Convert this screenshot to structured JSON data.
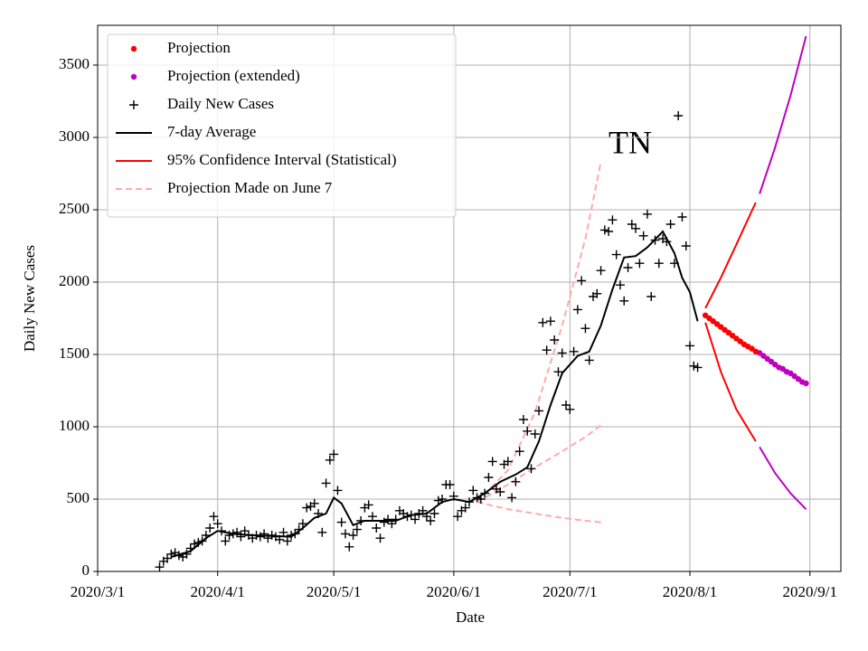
{
  "chart_data": {
    "type": "line",
    "annotation": "TN",
    "xlabel": "Date",
    "ylabel": "Daily New Cases",
    "xlim": [
      "2020-03-01",
      "2020-09-09"
    ],
    "ylim": [
      0,
      3775
    ],
    "xticks": [
      {
        "value": "2020-03-01",
        "label": "2020/3/1"
      },
      {
        "value": "2020-04-01",
        "label": "2020/4/1"
      },
      {
        "value": "2020-05-01",
        "label": "2020/5/1"
      },
      {
        "value": "2020-06-01",
        "label": "2020/6/1"
      },
      {
        "value": "2020-07-01",
        "label": "2020/7/1"
      },
      {
        "value": "2020-08-01",
        "label": "2020/8/1"
      },
      {
        "value": "2020-09-01",
        "label": "2020/9/1"
      }
    ],
    "yticks": [
      0,
      500,
      1000,
      1500,
      2000,
      2500,
      3000,
      3500
    ],
    "grid": true,
    "legend": "upper left",
    "series": [
      {
        "name": "Projection",
        "style": "dot",
        "color": "#ff0000",
        "x": [
          "2020-08-05",
          "2020-08-06",
          "2020-08-07",
          "2020-08-08",
          "2020-08-09",
          "2020-08-10",
          "2020-08-11",
          "2020-08-12",
          "2020-08-13",
          "2020-08-14",
          "2020-08-15",
          "2020-08-16",
          "2020-08-17",
          "2020-08-18"
        ],
        "values": [
          1770,
          1750,
          1730,
          1710,
          1690,
          1670,
          1650,
          1630,
          1610,
          1590,
          1570,
          1555,
          1540,
          1520
        ]
      },
      {
        "name": "Projection (extended)",
        "style": "dot",
        "color": "#bf00bf",
        "x": [
          "2020-08-19",
          "2020-08-20",
          "2020-08-21",
          "2020-08-22",
          "2020-08-23",
          "2020-08-24",
          "2020-08-25",
          "2020-08-26",
          "2020-08-27",
          "2020-08-28",
          "2020-08-29",
          "2020-08-30",
          "2020-08-31"
        ],
        "values": [
          1510,
          1490,
          1470,
          1450,
          1430,
          1410,
          1400,
          1380,
          1370,
          1350,
          1330,
          1310,
          1300
        ]
      },
      {
        "name": "Daily New Cases",
        "style": "plus",
        "color": "#000000",
        "x": [
          "2020-03-17",
          "2020-03-18",
          "2020-03-19",
          "2020-03-20",
          "2020-03-21",
          "2020-03-22",
          "2020-03-23",
          "2020-03-24",
          "2020-03-25",
          "2020-03-26",
          "2020-03-27",
          "2020-03-28",
          "2020-03-29",
          "2020-03-30",
          "2020-03-31",
          "2020-04-01",
          "2020-04-02",
          "2020-04-03",
          "2020-04-04",
          "2020-04-05",
          "2020-04-06",
          "2020-04-07",
          "2020-04-08",
          "2020-04-09",
          "2020-04-10",
          "2020-04-11",
          "2020-04-12",
          "2020-04-13",
          "2020-04-14",
          "2020-04-15",
          "2020-04-16",
          "2020-04-17",
          "2020-04-18",
          "2020-04-19",
          "2020-04-20",
          "2020-04-21",
          "2020-04-22",
          "2020-04-23",
          "2020-04-24",
          "2020-04-25",
          "2020-04-26",
          "2020-04-27",
          "2020-04-28",
          "2020-04-29",
          "2020-04-30",
          "2020-05-01",
          "2020-05-02",
          "2020-05-03",
          "2020-05-04",
          "2020-05-05",
          "2020-05-06",
          "2020-05-07",
          "2020-05-08",
          "2020-05-09",
          "2020-05-10",
          "2020-05-11",
          "2020-05-12",
          "2020-05-13",
          "2020-05-14",
          "2020-05-15",
          "2020-05-16",
          "2020-05-17",
          "2020-05-18",
          "2020-05-19",
          "2020-05-20",
          "2020-05-21",
          "2020-05-22",
          "2020-05-23",
          "2020-05-24",
          "2020-05-25",
          "2020-05-26",
          "2020-05-27",
          "2020-05-28",
          "2020-05-29",
          "2020-05-30",
          "2020-05-31",
          "2020-06-01",
          "2020-06-02",
          "2020-06-03",
          "2020-06-04",
          "2020-06-05",
          "2020-06-06",
          "2020-06-07",
          "2020-06-08",
          "2020-06-09",
          "2020-06-10",
          "2020-06-11",
          "2020-06-12",
          "2020-06-13",
          "2020-06-14",
          "2020-06-15",
          "2020-06-16",
          "2020-06-17",
          "2020-06-18",
          "2020-06-19",
          "2020-06-20",
          "2020-06-21",
          "2020-06-22",
          "2020-06-23",
          "2020-06-24",
          "2020-06-25",
          "2020-06-26",
          "2020-06-27",
          "2020-06-28",
          "2020-06-29",
          "2020-06-30",
          "2020-07-01",
          "2020-07-02",
          "2020-07-03",
          "2020-07-04",
          "2020-07-05",
          "2020-07-06",
          "2020-07-07",
          "2020-07-08",
          "2020-07-09",
          "2020-07-10",
          "2020-07-11",
          "2020-07-12",
          "2020-07-13",
          "2020-07-14",
          "2020-07-15",
          "2020-07-16",
          "2020-07-17",
          "2020-07-18",
          "2020-07-19",
          "2020-07-20",
          "2020-07-21",
          "2020-07-22",
          "2020-07-23",
          "2020-07-24",
          "2020-07-25",
          "2020-07-26",
          "2020-07-27",
          "2020-07-28",
          "2020-07-29",
          "2020-07-30",
          "2020-07-31",
          "2020-08-01",
          "2020-08-02",
          "2020-08-03"
        ],
        "values": [
          30,
          70,
          90,
          120,
          130,
          110,
          100,
          120,
          160,
          190,
          200,
          210,
          250,
          300,
          380,
          330,
          280,
          210,
          250,
          260,
          270,
          240,
          280,
          250,
          230,
          250,
          240,
          260,
          230,
          250,
          240,
          220,
          270,
          210,
          250,
          260,
          290,
          330,
          440,
          450,
          470,
          400,
          270,
          610,
          770,
          810,
          560,
          340,
          260,
          170,
          250,
          290,
          350,
          440,
          460,
          380,
          300,
          230,
          340,
          360,
          330,
          360,
          420,
          400,
          380,
          390,
          360,
          400,
          420,
          380,
          350,
          400,
          490,
          500,
          600,
          600,
          520,
          380,
          420,
          440,
          480,
          560,
          510,
          500,
          540,
          650,
          760,
          570,
          550,
          740,
          760,
          510,
          620,
          830,
          1050,
          970,
          710,
          950,
          1110,
          1720,
          1530,
          1730,
          1600,
          1380,
          1510,
          1150,
          1120,
          1520,
          1810,
          2010,
          1680,
          1460,
          1900,
          1920,
          2080,
          2360,
          2350,
          2430,
          2190,
          1980,
          1870,
          2100,
          2400,
          2370,
          2130,
          2320,
          2470,
          1900,
          2290,
          2130,
          2300,
          2280,
          2400,
          2130,
          3150,
          2450,
          2250,
          1560,
          1420,
          1410
        ]
      },
      {
        "name": "7-day Average",
        "style": "line",
        "color": "#000000",
        "x": [
          "2020-03-20",
          "2020-03-25",
          "2020-03-29",
          "2020-04-01",
          "2020-04-05",
          "2020-04-10",
          "2020-04-15",
          "2020-04-20",
          "2020-04-23",
          "2020-04-26",
          "2020-04-29",
          "2020-05-01",
          "2020-05-03",
          "2020-05-06",
          "2020-05-09",
          "2020-05-13",
          "2020-05-17",
          "2020-05-21",
          "2020-05-25",
          "2020-05-29",
          "2020-06-01",
          "2020-06-05",
          "2020-06-09",
          "2020-06-13",
          "2020-06-17",
          "2020-06-20",
          "2020-06-23",
          "2020-06-26",
          "2020-06-29",
          "2020-07-03",
          "2020-07-06",
          "2020-07-09",
          "2020-07-12",
          "2020-07-15",
          "2020-07-18",
          "2020-07-21",
          "2020-07-25",
          "2020-07-28",
          "2020-07-30",
          "2020-08-01",
          "2020-08-03"
        ],
        "values": [
          100,
          140,
          230,
          280,
          260,
          250,
          245,
          240,
          300,
          370,
          400,
          510,
          470,
          320,
          350,
          350,
          350,
          390,
          400,
          480,
          500,
          480,
          540,
          620,
          670,
          720,
          900,
          1150,
          1370,
          1490,
          1520,
          1700,
          1950,
          2170,
          2180,
          2240,
          2350,
          2200,
          2030,
          1930,
          1730
        ]
      },
      {
        "name": "95% Confidence Interval (Statistical)",
        "style": "line",
        "color": "#ff0000",
        "x": [
          "2020-08-05",
          "2020-08-09",
          "2020-08-13",
          "2020-08-18"
        ],
        "values": [
          1820,
          2030,
          2260,
          2550
        ]
      },
      {
        "style": "line",
        "color": "#ff0000",
        "x": [
          "2020-08-05",
          "2020-08-09",
          "2020-08-13",
          "2020-08-18"
        ],
        "values": [
          1720,
          1380,
          1120,
          900
        ]
      },
      {
        "style": "line",
        "color": "#bf00bf",
        "x": [
          "2020-08-19",
          "2020-08-23",
          "2020-08-27",
          "2020-08-31"
        ],
        "values": [
          2610,
          2930,
          3290,
          3700
        ]
      },
      {
        "style": "line",
        "color": "#bf00bf",
        "x": [
          "2020-08-19",
          "2020-08-23",
          "2020-08-27",
          "2020-08-31"
        ],
        "values": [
          860,
          680,
          540,
          430
        ]
      },
      {
        "name": "Projection Made on June 7",
        "style": "dashed",
        "color": "#ffaaaa",
        "x": [
          "2020-06-07",
          "2020-06-15",
          "2020-06-22",
          "2020-06-29",
          "2020-07-05",
          "2020-07-09"
        ],
        "values": [
          480,
          700,
          1100,
          1700,
          2300,
          2830
        ]
      },
      {
        "style": "dashed",
        "color": "#ffaaaa",
        "x": [
          "2020-06-07",
          "2020-06-15",
          "2020-06-22",
          "2020-06-29",
          "2020-07-05",
          "2020-07-09"
        ],
        "values": [
          480,
          600,
          720,
          830,
          930,
          1010
        ]
      },
      {
        "style": "dashed",
        "color": "#ffaaaa",
        "x": [
          "2020-06-07",
          "2020-06-15",
          "2020-06-22",
          "2020-06-29",
          "2020-07-05",
          "2020-07-09"
        ],
        "values": [
          480,
          430,
          400,
          370,
          350,
          340
        ]
      }
    ]
  }
}
